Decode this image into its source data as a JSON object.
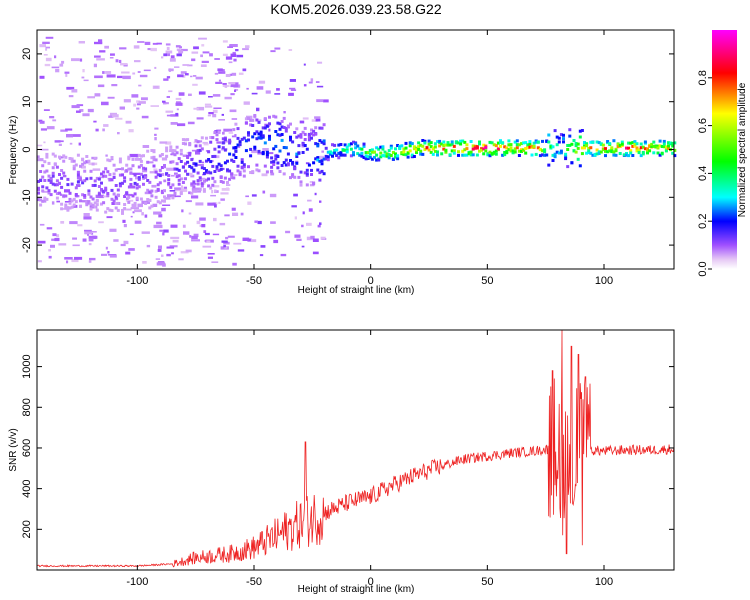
{
  "title": "KOM5.2026.039.23.58.G22",
  "colors": {
    "snr_line": "#ee2222",
    "frame": "#000000",
    "background": "#ffffff"
  },
  "chart_data": [
    {
      "type": "heatmap",
      "name": "spectrogram",
      "xlabel": "Height of straight line (km)",
      "ylabel": "Frequency (Hz)",
      "xlim": [
        -143,
        130
      ],
      "ylim": [
        -25,
        25
      ],
      "xticks": [
        -100,
        -50,
        0,
        50,
        100
      ],
      "yticks": [
        -20,
        -10,
        0,
        10,
        20
      ],
      "colorbar": {
        "label": "Normalized spectral amplitude",
        "range": [
          0.0,
          1.0
        ],
        "ticks": [
          0.0,
          0.2,
          0.4,
          0.6,
          0.8
        ],
        "tick_labels": [
          "0.0",
          "0.2",
          "0.4",
          "0.6",
          "0.8"
        ],
        "colormap": [
          "#ffffff",
          "#d9a6f2",
          "#7a00ff",
          "#0000ff",
          "#00ffff",
          "#00ff00",
          "#ffff00",
          "#ff0000",
          "#ff00ff"
        ]
      },
      "ridge": [
        {
          "x": -130,
          "f": -7,
          "amp": 0.12
        },
        {
          "x": -110,
          "f": -8,
          "amp": 0.12
        },
        {
          "x": -90,
          "f": -6,
          "amp": 0.12
        },
        {
          "x": -80,
          "f": -4,
          "amp": 0.14
        },
        {
          "x": -70,
          "f": -3,
          "amp": 0.18
        },
        {
          "x": -60,
          "f": -1,
          "amp": 0.2
        },
        {
          "x": -50,
          "f": 1,
          "amp": 0.22
        },
        {
          "x": -40,
          "f": 1,
          "amp": 0.26
        },
        {
          "x": -30,
          "f": -2,
          "amp": 0.2
        },
        {
          "x": -20,
          "f": -1,
          "amp": 0.3
        },
        {
          "x": -10,
          "f": 0,
          "amp": 0.4
        },
        {
          "x": 0,
          "f": -1,
          "amp": 0.5
        },
        {
          "x": 10,
          "f": -1,
          "amp": 0.55
        },
        {
          "x": 20,
          "f": 0,
          "amp": 0.65
        },
        {
          "x": 30,
          "f": 0,
          "amp": 0.75
        },
        {
          "x": 40,
          "f": 0,
          "amp": 0.8
        },
        {
          "x": 50,
          "f": 0,
          "amp": 0.8
        },
        {
          "x": 60,
          "f": 0,
          "amp": 0.75
        },
        {
          "x": 70,
          "f": 0,
          "amp": 0.7
        },
        {
          "x": 80,
          "f": 0,
          "amp": 0.3
        },
        {
          "x": 90,
          "f": 0,
          "amp": 0.6
        },
        {
          "x": 100,
          "f": 0,
          "amp": 0.7
        },
        {
          "x": 110,
          "f": 0,
          "amp": 0.75
        },
        {
          "x": 120,
          "f": 0,
          "amp": 0.7
        },
        {
          "x": 130,
          "f": 0,
          "amp": 0.6
        }
      ]
    },
    {
      "type": "line",
      "name": "snr",
      "xlabel": "Height of straight line (km)",
      "ylabel": "SNR (v/v)",
      "xlim": [
        -143,
        130
      ],
      "ylim": [
        0,
        1180
      ],
      "xticks": [
        -100,
        -50,
        0,
        50,
        100
      ],
      "yticks": [
        200,
        400,
        600,
        800,
        1000
      ],
      "envelope": [
        {
          "x": -143,
          "y": 20
        },
        {
          "x": -100,
          "y": 20
        },
        {
          "x": -85,
          "y": 30
        },
        {
          "x": -75,
          "y": 60
        },
        {
          "x": -60,
          "y": 80
        },
        {
          "x": -50,
          "y": 110
        },
        {
          "x": -40,
          "y": 170
        },
        {
          "x": -30,
          "y": 230
        },
        {
          "x": -20,
          "y": 280
        },
        {
          "x": -10,
          "y": 330
        },
        {
          "x": 0,
          "y": 360
        },
        {
          "x": 10,
          "y": 420
        },
        {
          "x": 20,
          "y": 470
        },
        {
          "x": 30,
          "y": 510
        },
        {
          "x": 40,
          "y": 545
        },
        {
          "x": 50,
          "y": 560
        },
        {
          "x": 60,
          "y": 575
        },
        {
          "x": 70,
          "y": 585
        },
        {
          "x": 80,
          "y": 600
        },
        {
          "x": 90,
          "y": 590
        },
        {
          "x": 100,
          "y": 585
        },
        {
          "x": 110,
          "y": 590
        },
        {
          "x": 120,
          "y": 590
        },
        {
          "x": 130,
          "y": 595
        }
      ],
      "spikes": [
        {
          "x": -28,
          "y": 630
        },
        {
          "x": 78,
          "y": 980
        },
        {
          "x": 82,
          "y": 1180
        },
        {
          "x": 86,
          "y": 1100
        },
        {
          "x": 89,
          "y": 1060
        },
        {
          "x": 92,
          "y": 950
        },
        {
          "x": 84,
          "y": 80
        }
      ]
    }
  ]
}
